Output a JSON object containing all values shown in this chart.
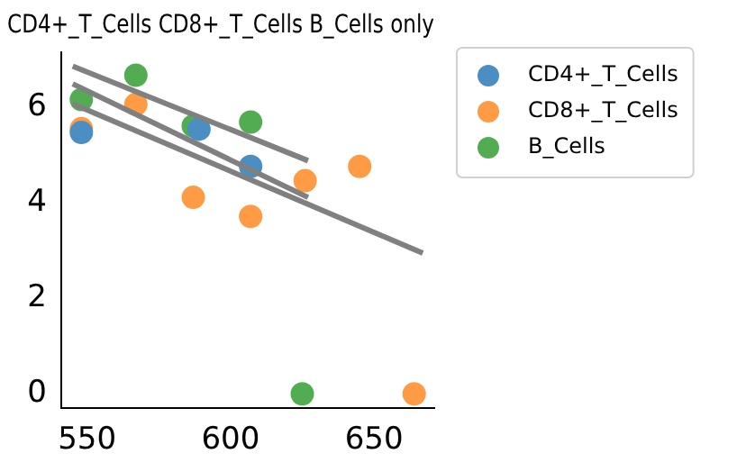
{
  "chart_data": {
    "type": "scatter",
    "title": "CD4+_T_Cells CD8+_T_Cells B_Cells only",
    "xlim": [
      541,
      671
    ],
    "xticks": [
      550,
      600,
      650
    ],
    "ylim": [
      -0.3,
      7.17
    ],
    "yticks": [
      0,
      2,
      4,
      6
    ],
    "grid": false,
    "legend": "top right",
    "marker": "circle",
    "series": [
      {
        "name": "CD4+_T_Cells",
        "color": "#4b8fc2",
        "x": [
          548,
          589,
          607
        ],
        "values": [
          5.48,
          5.55,
          4.77
        ]
      },
      {
        "name": "CD8+_T_Cells",
        "color": "#ff9a45",
        "x": [
          548,
          567,
          587,
          607,
          626,
          645,
          664
        ],
        "values": [
          5.56,
          6.07,
          4.12,
          3.72,
          4.47,
          4.77,
          0
        ]
      },
      {
        "name": "B_Cells",
        "color": "#52ad52",
        "x": [
          548,
          567,
          587,
          607,
          625
        ],
        "values": [
          6.17,
          6.68,
          5.62,
          5.7,
          0
        ]
      },
      {
        "type": "line",
        "marker": "none",
        "color": "#808080",
        "x": [
          545,
          627
        ],
        "values": [
          6.87,
          4.89
        ]
      },
      {
        "type": "line",
        "marker": "none",
        "color": "#808080",
        "x": [
          545,
          627
        ],
        "values": [
          6.5,
          4.12
        ]
      },
      {
        "type": "line",
        "marker": "none",
        "color": "#808080",
        "x": [
          545,
          667
        ],
        "values": [
          6.08,
          2.95
        ]
      }
    ]
  }
}
